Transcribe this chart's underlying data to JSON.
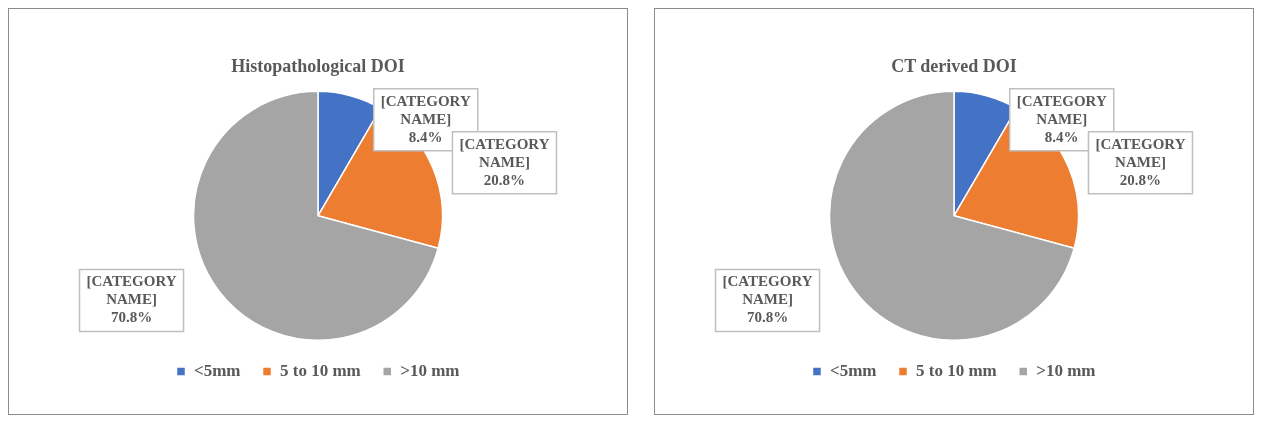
{
  "chart_data": [
    {
      "type": "pie",
      "title": "Histopathological DOI",
      "categories": [
        "<5mm",
        "5 to 10 mm",
        ">10 mm"
      ],
      "values": [
        8.4,
        20.8,
        70.8
      ],
      "colors": [
        "#4472c4",
        "#ed7d31",
        "#a5a5a5"
      ],
      "value_labels": [
        "[CATEGORY NAME]\n8.4%",
        "[CATEGORY NAME]\n20.8%",
        "[CATEGORY NAME]\n70.8%"
      ],
      "legend": "bottom"
    },
    {
      "type": "pie",
      "title": "CT derived DOI",
      "categories": [
        "<5mm",
        "5 to 10 mm",
        ">10 mm"
      ],
      "values": [
        8.4,
        20.8,
        70.8
      ],
      "colors": [
        "#4472c4",
        "#ed7d31",
        "#a5a5a5"
      ],
      "value_labels": [
        "[CATEGORY NAME]\n8.4%",
        "[CATEGORY NAME]\n20.8%",
        "[CATEGORY NAME]\n70.8%"
      ],
      "legend": "bottom"
    }
  ]
}
